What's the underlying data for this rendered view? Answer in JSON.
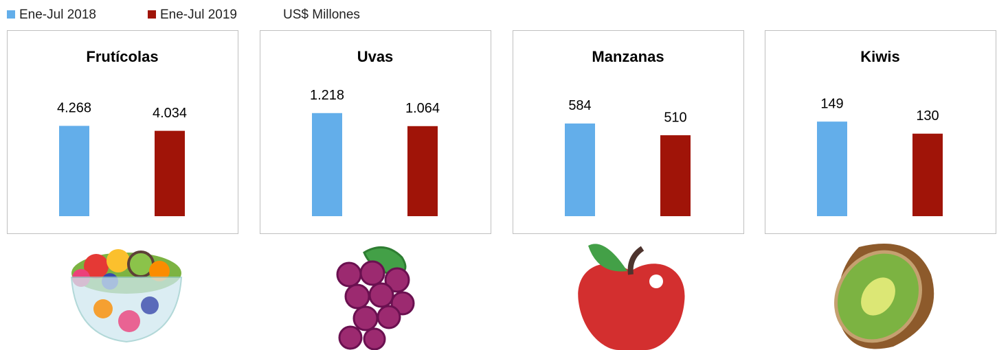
{
  "legend": {
    "series": [
      {
        "name": "Ene-Jul 2018",
        "color": "#63aeea"
      },
      {
        "name": "Ene-Jul 2019",
        "color": "#a01408"
      }
    ],
    "unit": "US$ Millones"
  },
  "chart_data": [
    {
      "type": "bar",
      "title": "Frutícolas",
      "values": [
        4268,
        4034
      ],
      "value_labels": [
        "4.268",
        "4.034"
      ],
      "ylim": [
        0,
        6000
      ]
    },
    {
      "type": "bar",
      "title": "Uvas",
      "values": [
        1218,
        1064
      ],
      "value_labels": [
        "1.218",
        "1.064"
      ],
      "ylim": [
        0,
        1500
      ]
    },
    {
      "type": "bar",
      "title": "Manzanas",
      "values": [
        584,
        510
      ],
      "value_labels": [
        "584",
        "510"
      ],
      "ylim": [
        0,
        800
      ]
    },
    {
      "type": "bar",
      "title": "Kiwis",
      "values": [
        149,
        130
      ],
      "value_labels": [
        "149",
        "130"
      ],
      "ylim": [
        0,
        200
      ]
    }
  ]
}
